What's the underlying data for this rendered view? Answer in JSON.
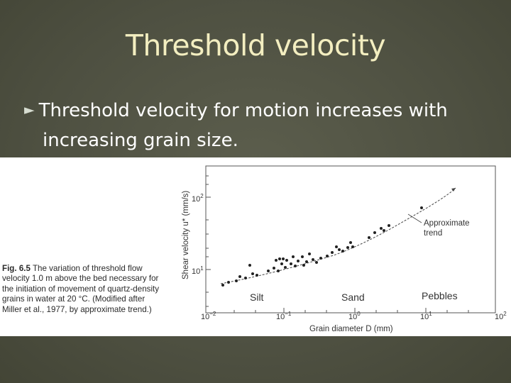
{
  "slide": {
    "title": "Threshold velocity",
    "bullet": {
      "marker": "►",
      "line1": "Threshold velocity for motion increases with",
      "line2": "increasing grain size."
    }
  },
  "figure": {
    "caption_label": "Fig. 6.5",
    "caption_text": "The variation of threshold flow velocity 1.0 m above the bed necessary for the initiation of movement of quartz-density grains in water at 20 °C. (Modified after Miller et al., 1977, by approximate trend.)",
    "y_axis_label": "Shear velocity u* (mm/s)",
    "x_axis_label": "Grain diameter D (mm)",
    "trend_label_line1": "Approximate",
    "trend_label_line2": "trend",
    "x_ticks": [
      {
        "base": "10",
        "exp": "−2"
      },
      {
        "base": "10",
        "exp": "−1"
      },
      {
        "base": "10",
        "exp": "0"
      },
      {
        "base": "10",
        "exp": "1"
      },
      {
        "base": "10",
        "exp": "2"
      }
    ],
    "y_ticks": [
      {
        "base": "10",
        "exp": "1"
      },
      {
        "base": "10",
        "exp": "2"
      }
    ],
    "class_labels": [
      "Silt",
      "Sand",
      "Pebbles"
    ]
  },
  "colors": {
    "background": "#4e5041",
    "title": "#f3eec0",
    "text": "#ffffff",
    "class_label_outline": "#1f4e9a"
  }
}
